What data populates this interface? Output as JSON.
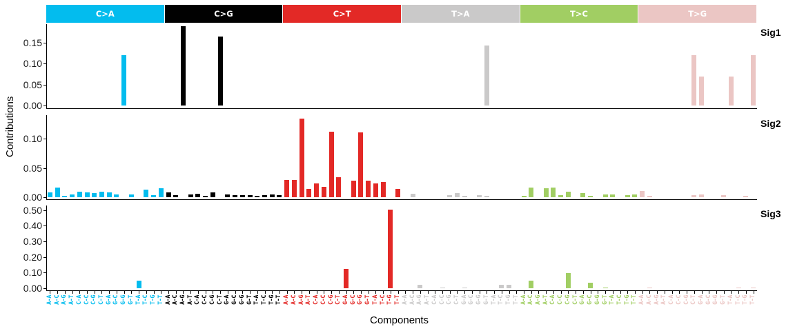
{
  "chart_data": {
    "type": "bar",
    "xlabel": "Components",
    "ylabel": "Contributions",
    "grid": false,
    "legend": "none",
    "facet_strips": [
      {
        "label": "C>A",
        "color": "#03BCEE"
      },
      {
        "label": "C>G",
        "color": "#010101"
      },
      {
        "label": "C>T",
        "color": "#E32926"
      },
      {
        "label": "T>A",
        "color": "#CAC9C9"
      },
      {
        "label": "T>C",
        "color": "#A1CE63"
      },
      {
        "label": "T>G",
        "color": "#EBC6C4"
      }
    ],
    "contexts": [
      "A-A",
      "A-C",
      "A-G",
      "A-T",
      "C-A",
      "C-C",
      "C-G",
      "C-T",
      "G-A",
      "G-C",
      "G-G",
      "G-T",
      "T-A",
      "T-C",
      "T-G",
      "T-T"
    ],
    "series": [
      {
        "name": "Sig1",
        "ylim": [
          0,
          0.195
        ],
        "yticks": [
          0.0,
          0.05,
          0.1,
          0.15
        ],
        "ytick_labels": [
          "0.00",
          "0.05",
          "0.10",
          "0.15"
        ],
        "values": {
          "C>A": [
            0,
            0,
            0,
            0,
            0,
            0,
            0,
            0,
            0,
            0,
            0.12,
            0,
            0,
            0,
            0,
            0
          ],
          "C>G": [
            0,
            0,
            0.19,
            0,
            0,
            0,
            0,
            0.165,
            0,
            0,
            0,
            0,
            0,
            0,
            0,
            0
          ],
          "C>T": [
            0,
            0,
            0,
            0,
            0,
            0,
            0,
            0,
            0,
            0,
            0,
            0,
            0,
            0,
            0,
            0
          ],
          "T>A": [
            0,
            0,
            0,
            0,
            0,
            0,
            0,
            0,
            0,
            0,
            0,
            0.143,
            0,
            0,
            0,
            0
          ],
          "T>C": [
            0,
            0,
            0,
            0,
            0,
            0,
            0,
            0,
            0,
            0,
            0,
            0,
            0,
            0,
            0,
            0
          ],
          "T>G": [
            0,
            0,
            0,
            0,
            0,
            0,
            0,
            0.12,
            0.07,
            0,
            0,
            0,
            0.07,
            0,
            0,
            0.12
          ]
        }
      },
      {
        "name": "Sig2",
        "ylim": [
          0,
          0.14
        ],
        "yticks": [
          0.0,
          0.05,
          0.1
        ],
        "ytick_labels": [
          "0.00",
          "0.05",
          "0.10"
        ],
        "values": {
          "C>A": [
            0.008,
            0.016,
            0.002,
            0.005,
            0.01,
            0.008,
            0.007,
            0.01,
            0.008,
            0.005,
            0,
            0.005,
            0,
            0.013,
            0.004,
            0.015
          ],
          "C>G": [
            0.008,
            0.003,
            0,
            0.005,
            0.006,
            0.002,
            0.008,
            0,
            0.005,
            0.003,
            0.003,
            0.003,
            0.002,
            0.004,
            0.005,
            0.004
          ],
          "C>T": [
            0.029,
            0.029,
            0.134,
            0.014,
            0.023,
            0.018,
            0.112,
            0.034,
            0,
            0.028,
            0.111,
            0.028,
            0.024,
            0.026,
            0,
            0.014
          ],
          "T>A": [
            0,
            0.006,
            0,
            0,
            0,
            0,
            0.003,
            0.007,
            0.002,
            0,
            0.004,
            0.002,
            0,
            0,
            0,
            0
          ],
          "T>C": [
            0.002,
            0.016,
            0,
            0.015,
            0.016,
            0.003,
            0.01,
            0,
            0.007,
            0.002,
            0,
            0.005,
            0.005,
            0,
            0.004,
            0.005
          ],
          "T>G": [
            0.011,
            0.002,
            0,
            0,
            0,
            0,
            0,
            0.004,
            0.005,
            0,
            0,
            0.003,
            0,
            0,
            0.002,
            0
          ]
        }
      },
      {
        "name": "Sig3",
        "ylim": [
          0,
          0.53
        ],
        "yticks": [
          0.0,
          0.1,
          0.2,
          0.3,
          0.4,
          0.5
        ],
        "ytick_labels": [
          "0.00",
          "0.10",
          "0.20",
          "0.30",
          "0.40",
          "0.50"
        ],
        "values": {
          "C>A": [
            0,
            0,
            0,
            0,
            0,
            0,
            0,
            0,
            0,
            0,
            0,
            0,
            0.05,
            0,
            0,
            0
          ],
          "C>G": [
            0,
            0,
            0,
            0,
            0,
            0,
            0,
            0,
            0,
            0,
            0,
            0,
            0,
            0,
            0,
            0
          ],
          "C>T": [
            0,
            0,
            0,
            0,
            0,
            0,
            0,
            0,
            0.122,
            0,
            0,
            0,
            0,
            0,
            0.505,
            0
          ],
          "T>A": [
            0,
            0,
            0.022,
            0,
            0,
            0.005,
            0,
            0,
            0.005,
            0,
            0,
            0,
            0,
            0.02,
            0.02,
            0
          ],
          "T>C": [
            0,
            0.05,
            0,
            0,
            0,
            0,
            0.095,
            0,
            0,
            0.035,
            0,
            0.005,
            0,
            0,
            0,
            0
          ],
          "T>G": [
            0,
            0.005,
            0,
            0,
            0,
            0,
            0,
            0,
            0,
            0,
            0,
            0,
            0,
            0.005,
            0,
            0.005
          ]
        }
      }
    ]
  },
  "axes": {
    "x_title": "Components",
    "y_title": "Contributions"
  }
}
